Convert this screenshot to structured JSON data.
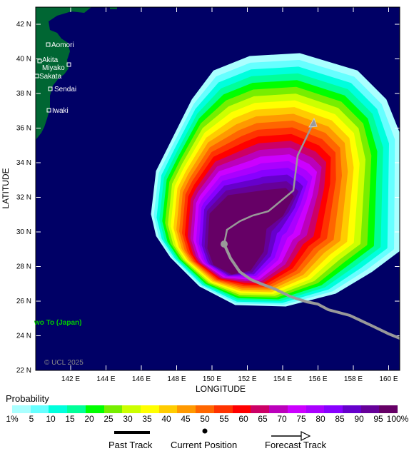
{
  "map": {
    "ocean_color": "#000066",
    "land_color": "#006633",
    "track_color": "#999999",
    "lon_ticks": [
      "142 E",
      "144 E",
      "146 E",
      "148 E",
      "150 E",
      "152 E",
      "154 E",
      "156 E",
      "158 E",
      "160 E"
    ],
    "lat_ticks": [
      "42 N",
      "40 N",
      "38 N",
      "36 N",
      "34 N",
      "32 N",
      "30 N",
      "28 N",
      "26 N",
      "24 N",
      "22 N"
    ],
    "xlabel": "LONGITUDE",
    "ylabel": "LATITUDE",
    "cities": [
      "Aomori",
      "Akita",
      "Miyako",
      "Sakata",
      "Sendai",
      "Iwaki"
    ],
    "island_label": "wo To (Japan)",
    "copyright": "© UCL 2025"
  },
  "legend": {
    "title": "Probability",
    "colors": [
      "#aaffff",
      "#66ffff",
      "#00ffdd",
      "#00ff99",
      "#00ff00",
      "#77ee00",
      "#ccff00",
      "#ffff00",
      "#ffcc00",
      "#ff9900",
      "#ff6600",
      "#ff3300",
      "#ff0000",
      "#cc0066",
      "#bb00bb",
      "#cc00ff",
      "#aa00ff",
      "#8800ff",
      "#6600cc",
      "#660099",
      "#660066"
    ],
    "labels": [
      "1%",
      "5",
      "10",
      "15",
      "20",
      "25",
      "30",
      "35",
      "40",
      "45",
      "50",
      "55",
      "60",
      "65",
      "70",
      "75",
      "80",
      "85",
      "90",
      "95",
      "100%"
    ],
    "past_track": "Past Track",
    "current_position": "Current Position",
    "forecast_track": "Forecast Track"
  }
}
